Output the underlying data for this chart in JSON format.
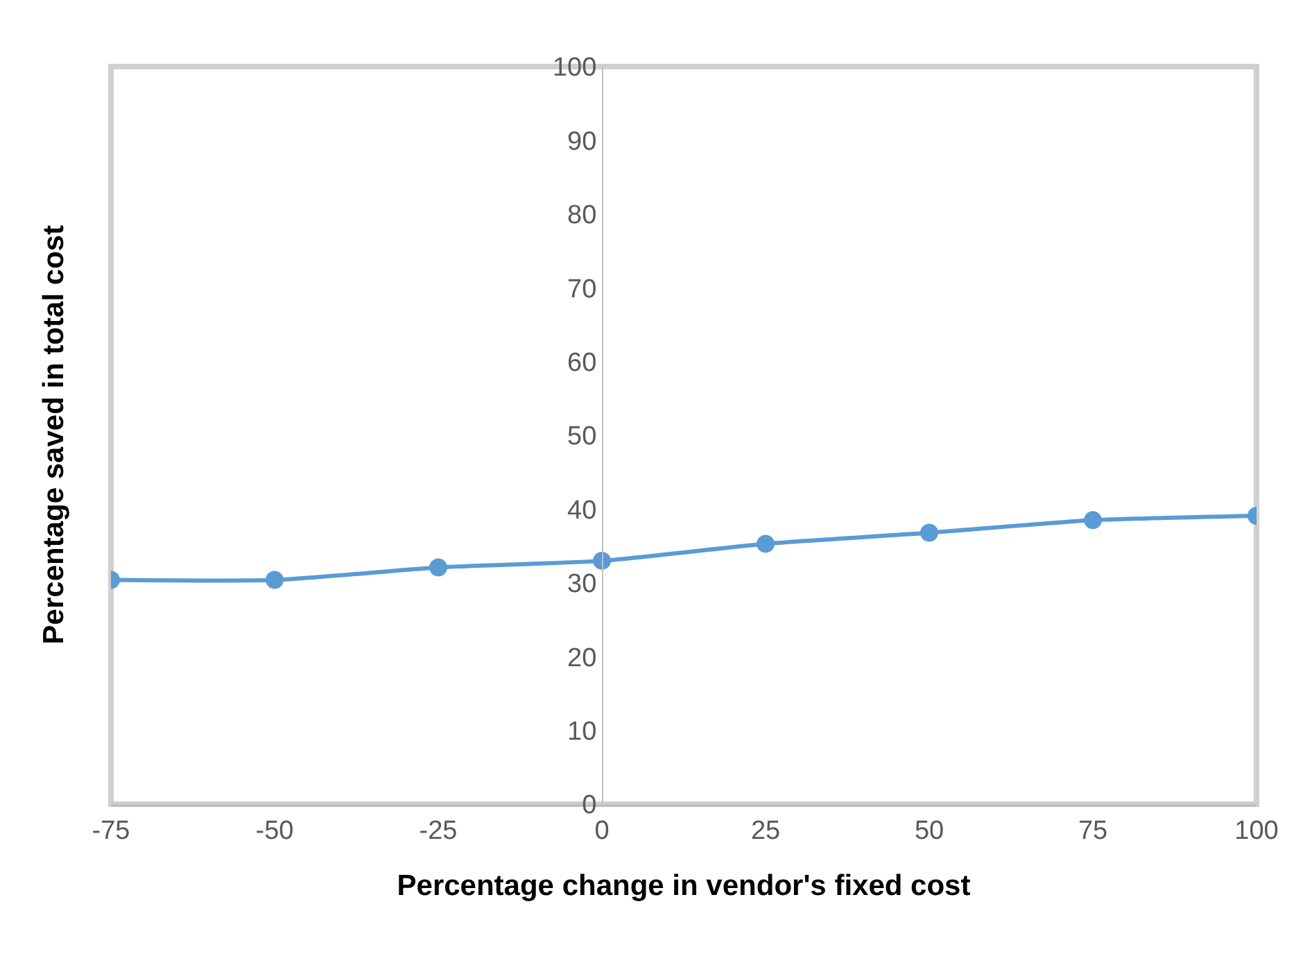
{
  "chart_data": {
    "type": "line",
    "xlabel": "Percentage change in vendor's fixed cost",
    "ylabel": "Percentage saved in total cost",
    "x": [
      -75,
      -50,
      -25,
      0,
      25,
      50,
      75,
      100
    ],
    "series": [
      {
        "color": "#5b9bd5",
        "values": [
          30.4,
          30.4,
          32.1,
          33.0,
          35.3,
          36.8,
          38.5,
          39.1
        ]
      }
    ],
    "xlim": [
      -75,
      100
    ],
    "xticks": [
      -75,
      -50,
      -25,
      0,
      25,
      50,
      75,
      100
    ],
    "ylim": [
      0,
      100
    ],
    "yticks": [
      0,
      10,
      20,
      30,
      40,
      50,
      60,
      70,
      80,
      90,
      100
    ],
    "marker": "circle",
    "line_style": "solid"
  }
}
